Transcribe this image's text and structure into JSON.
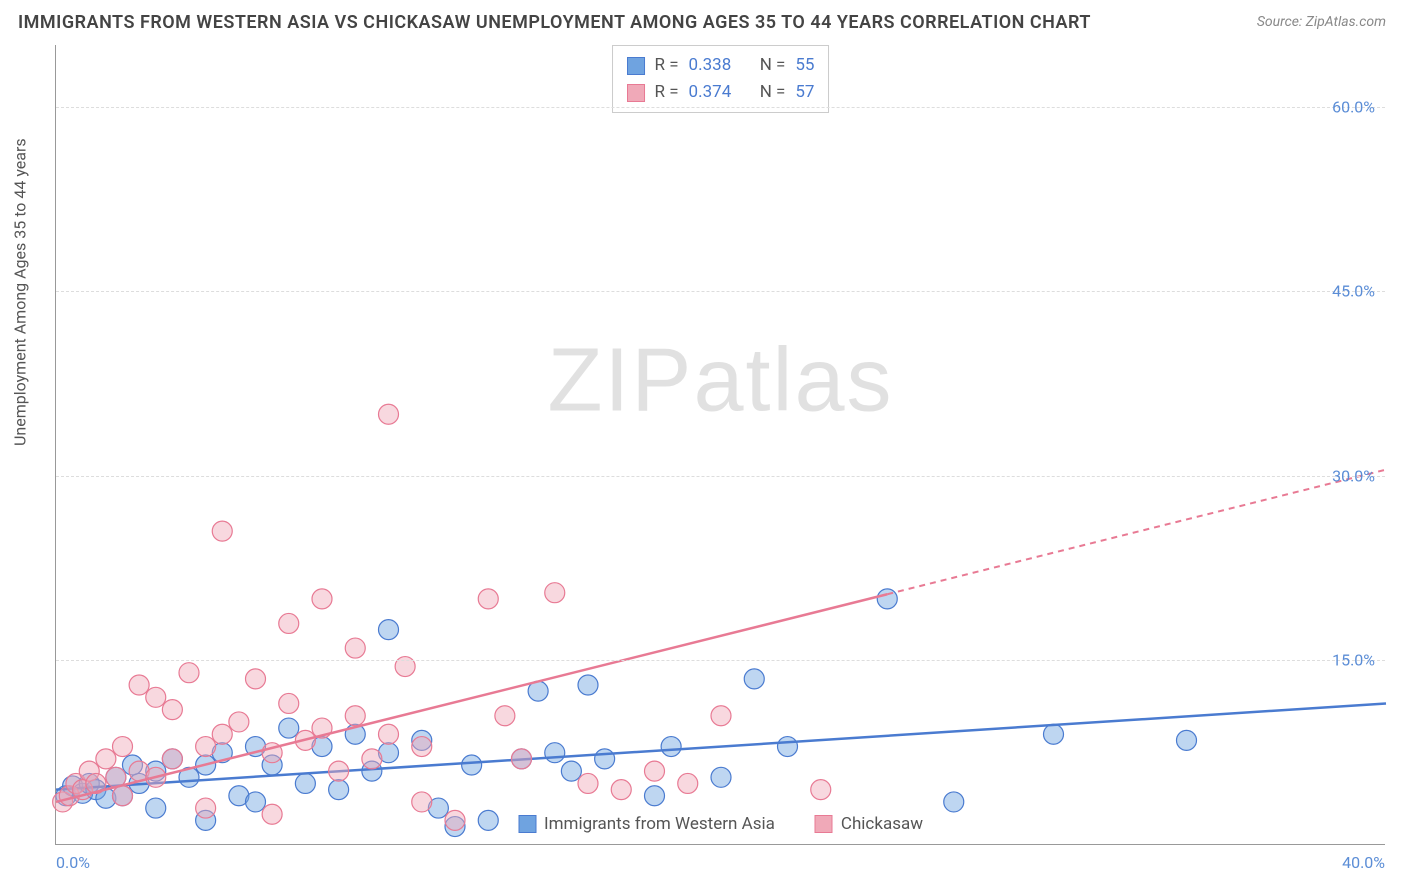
{
  "title": "IMMIGRANTS FROM WESTERN ASIA VS CHICKASAW UNEMPLOYMENT AMONG AGES 35 TO 44 YEARS CORRELATION CHART",
  "source": "Source: ZipAtlas.com",
  "y_axis_label": "Unemployment Among Ages 35 to 44 years",
  "watermark_a": "ZIP",
  "watermark_b": "atlas",
  "chart": {
    "type": "scatter",
    "background_color": "#ffffff",
    "grid_color": "#dddddd",
    "axis_color": "#999999",
    "xlim": [
      0,
      40
    ],
    "ylim": [
      0,
      65
    ],
    "y_ticks": [
      {
        "v": 15,
        "label": "15.0%"
      },
      {
        "v": 30,
        "label": "30.0%"
      },
      {
        "v": 45,
        "label": "45.0%"
      },
      {
        "v": 60,
        "label": "60.0%"
      }
    ],
    "x_ticks": [
      {
        "v": 0,
        "label": "0.0%",
        "pos": "left"
      },
      {
        "v": 40,
        "label": "40.0%",
        "pos": "right"
      }
    ],
    "marker_radius": 10,
    "marker_opacity": 0.45,
    "series": [
      {
        "name": "Immigrants from Western Asia",
        "color": "#6fa3e0",
        "stroke": "#4a7bd0",
        "R": "0.338",
        "N": "55",
        "trend": {
          "x1": 0,
          "y1": 4.5,
          "x2": 40,
          "y2": 11.5,
          "dash_from_x": null
        },
        "points": [
          [
            0.3,
            4.0
          ],
          [
            0.5,
            4.8
          ],
          [
            0.8,
            4.2
          ],
          [
            1.0,
            5.0
          ],
          [
            1.2,
            4.5
          ],
          [
            1.5,
            3.8
          ],
          [
            1.8,
            5.5
          ],
          [
            2.0,
            4.0
          ],
          [
            2.3,
            6.5
          ],
          [
            2.5,
            5.0
          ],
          [
            3.0,
            6.0
          ],
          [
            3.0,
            3.0
          ],
          [
            3.5,
            7.0
          ],
          [
            4.0,
            5.5
          ],
          [
            4.5,
            6.5
          ],
          [
            4.5,
            2.0
          ],
          [
            5.0,
            7.5
          ],
          [
            5.5,
            4.0
          ],
          [
            6.0,
            8.0
          ],
          [
            6.0,
            3.5
          ],
          [
            6.5,
            6.5
          ],
          [
            7.0,
            9.5
          ],
          [
            7.5,
            5.0
          ],
          [
            8.0,
            8.0
          ],
          [
            8.5,
            4.5
          ],
          [
            9.0,
            9.0
          ],
          [
            9.5,
            6.0
          ],
          [
            10.0,
            7.5
          ],
          [
            10.0,
            17.5
          ],
          [
            11.0,
            8.5
          ],
          [
            11.5,
            3.0
          ],
          [
            12.0,
            1.5
          ],
          [
            12.5,
            6.5
          ],
          [
            13.0,
            2.0
          ],
          [
            14.0,
            7.0
          ],
          [
            14.5,
            12.5
          ],
          [
            15.0,
            7.5
          ],
          [
            15.5,
            6.0
          ],
          [
            16.0,
            13.0
          ],
          [
            16.5,
            7.0
          ],
          [
            18.0,
            4.0
          ],
          [
            18.5,
            8.0
          ],
          [
            20.0,
            5.5
          ],
          [
            21.0,
            13.5
          ],
          [
            22.0,
            8.0
          ],
          [
            25.0,
            20.0
          ],
          [
            27.0,
            3.5
          ],
          [
            30.0,
            9.0
          ],
          [
            34.0,
            8.5
          ]
        ]
      },
      {
        "name": "Chickasaw",
        "color": "#f0a9b8",
        "stroke": "#e87a94",
        "R": "0.374",
        "N": "57",
        "trend": {
          "x1": 0,
          "y1": 3.5,
          "x2": 40,
          "y2": 30.5,
          "dash_from_x": 25
        },
        "points": [
          [
            0.2,
            3.5
          ],
          [
            0.4,
            4.0
          ],
          [
            0.6,
            5.0
          ],
          [
            0.8,
            4.5
          ],
          [
            1.0,
            6.0
          ],
          [
            1.2,
            5.0
          ],
          [
            1.5,
            7.0
          ],
          [
            1.8,
            5.5
          ],
          [
            2.0,
            8.0
          ],
          [
            2.0,
            4.0
          ],
          [
            2.5,
            13.0
          ],
          [
            2.5,
            6.0
          ],
          [
            3.0,
            12.0
          ],
          [
            3.0,
            5.5
          ],
          [
            3.5,
            11.0
          ],
          [
            3.5,
            7.0
          ],
          [
            4.0,
            14.0
          ],
          [
            4.5,
            8.0
          ],
          [
            4.5,
            3.0
          ],
          [
            5.0,
            9.0
          ],
          [
            5.0,
            25.5
          ],
          [
            5.5,
            10.0
          ],
          [
            6.0,
            13.5
          ],
          [
            6.5,
            7.5
          ],
          [
            6.5,
            2.5
          ],
          [
            7.0,
            11.5
          ],
          [
            7.0,
            18.0
          ],
          [
            7.5,
            8.5
          ],
          [
            8.0,
            20.0
          ],
          [
            8.0,
            9.5
          ],
          [
            8.5,
            6.0
          ],
          [
            9.0,
            10.5
          ],
          [
            9.0,
            16.0
          ],
          [
            9.5,
            7.0
          ],
          [
            10.0,
            9.0
          ],
          [
            10.0,
            35.0
          ],
          [
            10.5,
            14.5
          ],
          [
            11.0,
            8.0
          ],
          [
            11.0,
            3.5
          ],
          [
            12.0,
            2.0
          ],
          [
            13.0,
            20.0
          ],
          [
            13.5,
            10.5
          ],
          [
            14.0,
            7.0
          ],
          [
            15.0,
            20.5
          ],
          [
            16.0,
            5.0
          ],
          [
            17.0,
            4.5
          ],
          [
            18.0,
            6.0
          ],
          [
            19.0,
            5.0
          ],
          [
            20.0,
            10.5
          ],
          [
            23.0,
            4.5
          ]
        ]
      }
    ]
  },
  "legend_labels": {
    "series1": "Immigrants from Western Asia",
    "series2": "Chickasaw",
    "R_label": "R =",
    "N_label": "N ="
  }
}
